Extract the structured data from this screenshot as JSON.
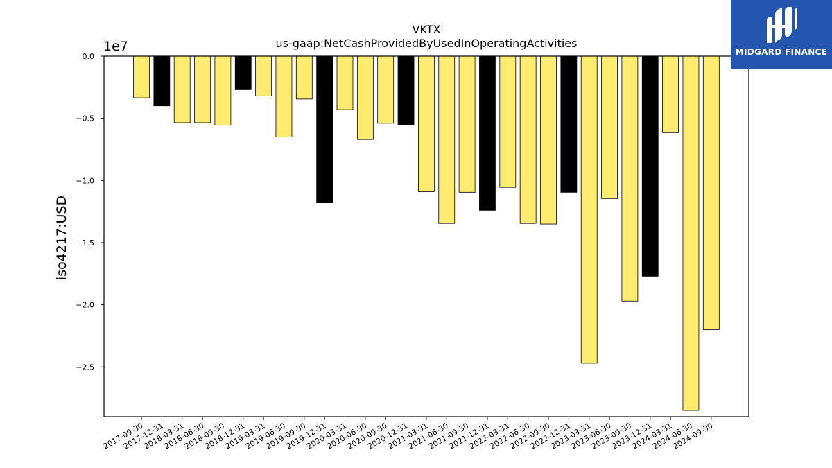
{
  "chart_data": {
    "type": "bar",
    "title": "VKTX",
    "subtitle": "us-gaap:NetCashProvidedByUsedInOperatingActivities",
    "ylabel": "iso4217:USD",
    "xlabel": "",
    "y_scale_label": "1e7",
    "ylim": [
      -2.9,
      0.0
    ],
    "yticks": [
      "0.0",
      "−0.5",
      "−1.0",
      "−1.5",
      "−2.0",
      "−2.5"
    ],
    "ytick_values": [
      0.0,
      -0.5,
      -1.0,
      -1.5,
      -2.0,
      -2.5
    ],
    "grid": false,
    "colors": {
      "quarter": "#ffeb70",
      "year_end": "#000000",
      "edge": "#000000"
    },
    "categories": [
      "2017-09-30",
      "2017-12-31",
      "2018-03-31",
      "2018-06-30",
      "2018-09-30",
      "2018-12-31",
      "2019-03-31",
      "2019-06-30",
      "2019-09-30",
      "2019-12-31",
      "2020-03-31",
      "2020-06-30",
      "2020-09-30",
      "2020-12-31",
      "2021-03-31",
      "2021-06-30",
      "2021-09-30",
      "2021-12-31",
      "2022-03-31",
      "2022-06-30",
      "2022-09-30",
      "2022-12-31",
      "2023-03-31",
      "2023-06-30",
      "2023-09-30",
      "2023-12-31",
      "2024-03-31",
      "2024-06-30",
      "2024-09-30"
    ],
    "values": [
      -0.335,
      -0.4,
      -0.535,
      -0.535,
      -0.555,
      -0.27,
      -0.32,
      -0.65,
      -0.345,
      -1.18,
      -0.43,
      -0.67,
      -0.54,
      -0.55,
      -1.09,
      -1.345,
      -1.095,
      -1.24,
      -1.055,
      -1.345,
      -1.35,
      -1.095,
      -2.47,
      -1.145,
      -1.97,
      -1.77,
      -0.615,
      -2.85,
      -2.2
    ],
    "year_end": [
      false,
      true,
      false,
      false,
      false,
      true,
      false,
      false,
      false,
      true,
      false,
      false,
      false,
      true,
      false,
      false,
      false,
      true,
      false,
      false,
      false,
      true,
      false,
      false,
      false,
      true,
      false,
      false,
      false
    ]
  },
  "logo": {
    "text": "MIDGARD FINANCE"
  }
}
